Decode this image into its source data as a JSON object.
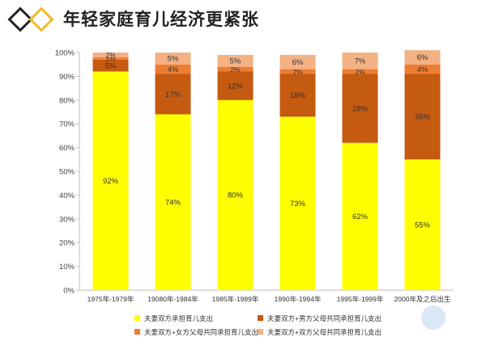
{
  "title": "年轻家庭育儿经济更紧张",
  "logo": {
    "colors": [
      "#222222",
      "#f2b92e"
    ]
  },
  "chart_data": {
    "type": "bar",
    "stacked": true,
    "categories": [
      "1975年-1979年",
      "19080年-1984年",
      "1985年-1989年",
      "1990年-1994年",
      "1995年-1999年",
      "2000年及之后出生"
    ],
    "series": [
      {
        "name": "夫妻双方承担育儿支出",
        "color": "#ffff00",
        "values": [
          92,
          74,
          80,
          73,
          62,
          55
        ]
      },
      {
        "name": "夫妻双方+男方父母共同承担育儿支出",
        "color": "#c55a11",
        "values": [
          5,
          17,
          12,
          18,
          29,
          36
        ]
      },
      {
        "name": "夫妻双方+女方父母共同承担育儿支出",
        "color": "#ed7d31",
        "values": [
          1,
          4,
          2,
          2,
          2,
          4
        ]
      },
      {
        "name": "夫妻双方+双方父母共同承担育儿支出",
        "color": "#f4b183",
        "values": [
          2,
          5,
          5,
          6,
          7,
          6
        ]
      }
    ],
    "labels": [
      [
        "92%",
        "74%",
        "80%",
        "73%",
        "62%",
        "55%"
      ],
      [
        "5%",
        "17%",
        "12%",
        "18%",
        "29%",
        "36%"
      ],
      [
        "1%",
        "4%",
        "2%",
        "2%",
        "2%",
        "4%"
      ],
      [
        "2%",
        "5%",
        "5%",
        "6%",
        "7%",
        "6%"
      ]
    ],
    "yticks": [
      "0%",
      "10%",
      "20%",
      "30%",
      "40%",
      "50%",
      "60%",
      "70%",
      "80%",
      "90%",
      "100%"
    ],
    "ylim": [
      0,
      100
    ],
    "grid": false,
    "legend": "bottom"
  }
}
